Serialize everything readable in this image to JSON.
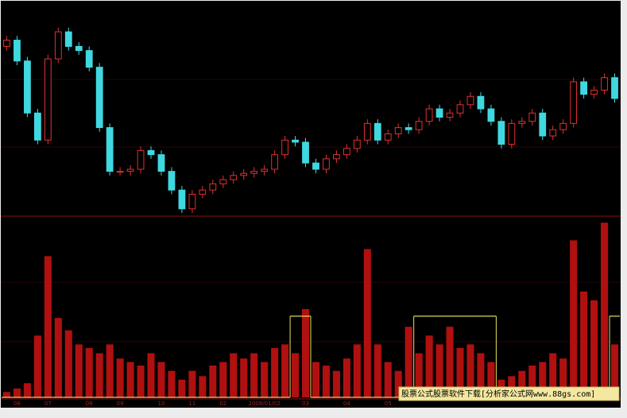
{
  "chart_data": [
    {
      "type": "candlestick",
      "up_color": "#e03030",
      "down_color": "#40d8e0",
      "ylim": [
        0,
        100
      ],
      "open": [
        80,
        83,
        73,
        48,
        35,
        74,
        87,
        80,
        78,
        70,
        41,
        20,
        20,
        21,
        30,
        28,
        20,
        11,
        2,
        9,
        11,
        14,
        16,
        18,
        19,
        20,
        21,
        28,
        35,
        34,
        24,
        21,
        26,
        28,
        31,
        35,
        43,
        35,
        38,
        41,
        40,
        44,
        50,
        46,
        48,
        52,
        56,
        50,
        44,
        33,
        43,
        44,
        48,
        37,
        40,
        43,
        63,
        57,
        59,
        65
      ],
      "close": [
        83,
        73,
        48,
        35,
        74,
        87,
        80,
        78,
        70,
        41,
        20,
        20,
        21,
        30,
        28,
        20,
        11,
        2,
        9,
        11,
        14,
        16,
        18,
        19,
        20,
        21,
        28,
        35,
        34,
        24,
        21,
        26,
        28,
        31,
        35,
        43,
        35,
        38,
        41,
        40,
        44,
        50,
        46,
        48,
        52,
        56,
        50,
        44,
        33,
        43,
        44,
        48,
        37,
        40,
        43,
        63,
        57,
        59,
        65,
        55
      ],
      "high": [
        85,
        85,
        75,
        50,
        76,
        89,
        89,
        82,
        80,
        72,
        43,
        22,
        23,
        32,
        32,
        30,
        22,
        13,
        11,
        13,
        16,
        18,
        20,
        21,
        22,
        23,
        30,
        37,
        37,
        36,
        26,
        28,
        30,
        33,
        37,
        45,
        45,
        40,
        43,
        43,
        46,
        52,
        52,
        50,
        54,
        58,
        58,
        52,
        46,
        45,
        46,
        50,
        50,
        42,
        45,
        65,
        65,
        61,
        67,
        67
      ],
      "low": [
        78,
        71,
        46,
        33,
        33,
        72,
        78,
        76,
        68,
        39,
        18,
        18,
        18,
        19,
        26,
        18,
        9,
        0,
        0,
        7,
        9,
        12,
        14,
        16,
        17,
        18,
        19,
        26,
        32,
        22,
        19,
        19,
        24,
        26,
        29,
        33,
        33,
        33,
        36,
        38,
        38,
        42,
        44,
        44,
        46,
        50,
        48,
        42,
        31,
        31,
        41,
        42,
        35,
        35,
        38,
        41,
        55,
        55,
        57,
        53
      ]
    },
    {
      "type": "bar",
      "color": "#b01010",
      "ylim": [
        0,
        100
      ],
      "categories": [
        null,
        "06",
        null,
        null,
        "07",
        null,
        null,
        null,
        "08",
        null,
        null,
        "09",
        null,
        null,
        null,
        "10",
        null,
        null,
        "11",
        null,
        null,
        "02",
        null,
        null,
        null,
        "2008/01/02",
        null,
        null,
        null,
        "03",
        null,
        null,
        null,
        "04",
        null,
        null,
        null,
        "05",
        null,
        null,
        null,
        null,
        null,
        null,
        null,
        null,
        null,
        null,
        null,
        null,
        null,
        null,
        null,
        null,
        null,
        null,
        null,
        null,
        null,
        null
      ],
      "values": [
        3,
        5,
        8,
        35,
        80,
        45,
        38,
        30,
        28,
        25,
        30,
        22,
        20,
        18,
        25,
        20,
        15,
        10,
        15,
        12,
        18,
        20,
        25,
        22,
        25,
        20,
        28,
        30,
        25,
        50,
        20,
        18,
        15,
        22,
        30,
        84,
        30,
        20,
        15,
        40,
        25,
        35,
        30,
        40,
        28,
        30,
        25,
        20,
        10,
        12,
        15,
        18,
        20,
        25,
        22,
        89,
        60,
        55,
        99,
        30
      ],
      "indicator": {
        "type": "step",
        "color": "#e8e060",
        "values": [
          0,
          0,
          0,
          0,
          0,
          0,
          0,
          0,
          0,
          0,
          0,
          0,
          0,
          0,
          0,
          0,
          0,
          0,
          0,
          0,
          0,
          0,
          0,
          0,
          0,
          0,
          0,
          0,
          46,
          46,
          0,
          0,
          0,
          0,
          0,
          0,
          0,
          0,
          0,
          0,
          46,
          46,
          46,
          46,
          46,
          46,
          46,
          46,
          0,
          0,
          0,
          0,
          0,
          0,
          0,
          0,
          0,
          0,
          0,
          46
        ]
      }
    }
  ],
  "watermark": "股票公式股票软件下载[分析家公式网www.88gs.com]"
}
